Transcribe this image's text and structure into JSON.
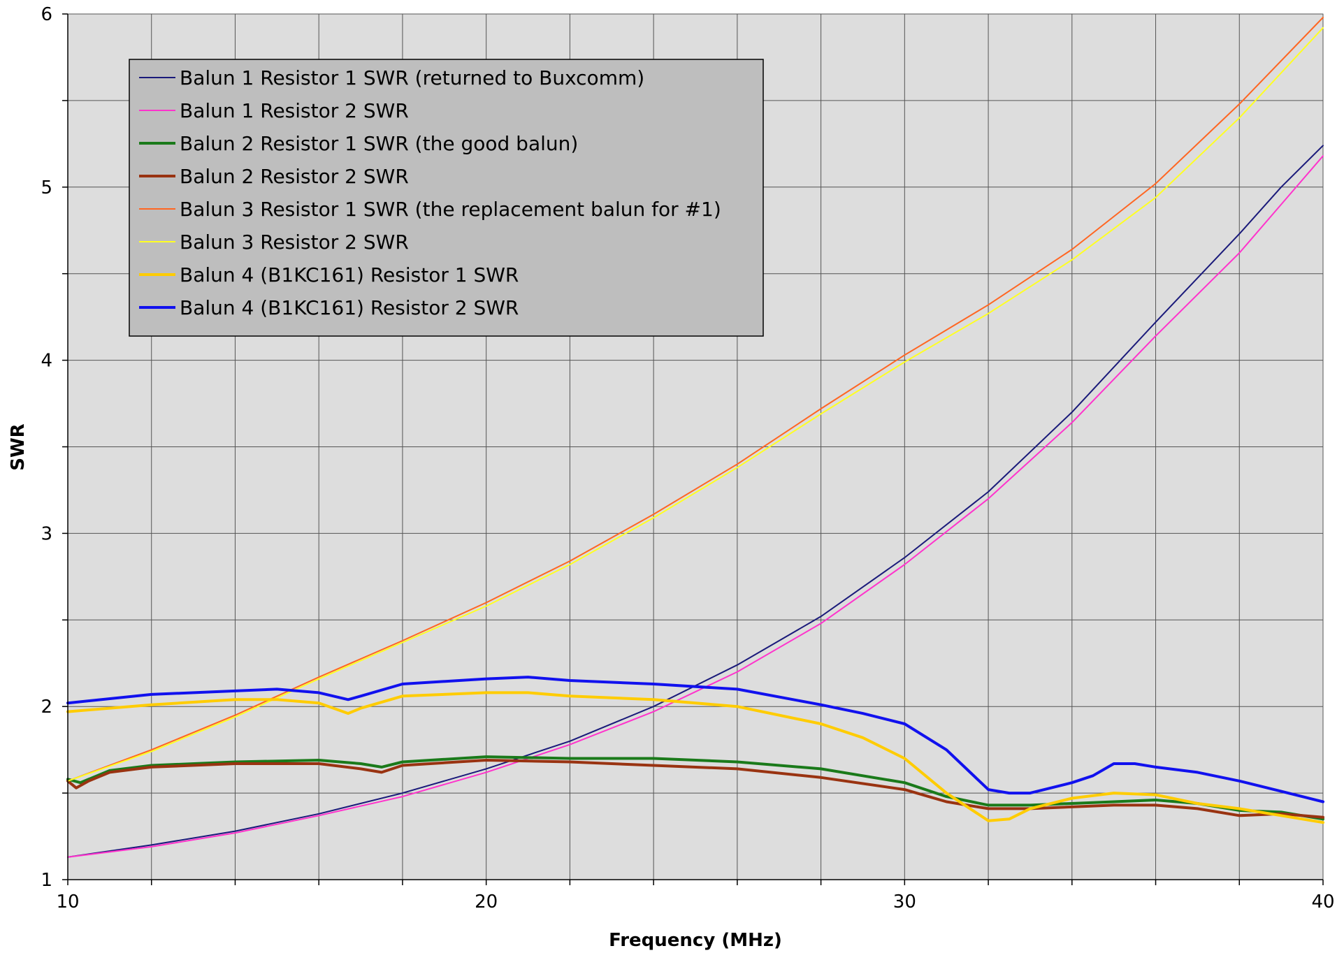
{
  "chart_data": {
    "type": "line",
    "xlabel": "Frequency (MHz)",
    "ylabel": "SWR",
    "xlim": [
      10,
      40
    ],
    "ylim": [
      1,
      6
    ],
    "x_ticks": [
      10,
      20,
      30,
      40
    ],
    "y_ticks": [
      1,
      2,
      3,
      4,
      5,
      6
    ],
    "x_minor_grid": [
      12,
      14,
      16,
      18,
      22,
      24,
      26,
      28,
      32,
      34,
      36,
      38
    ],
    "y_minor_grid": [
      1.5,
      2.5,
      3.5,
      4.5,
      5.5
    ],
    "grid": true,
    "plot_background": "#dddddd",
    "legend_placement": "top-left",
    "series": [
      {
        "name": "Balun 1 Resistor 1 SWR (returned to Buxcomm)",
        "color": "#1a1a7a",
        "width": 2,
        "x": [
          10,
          12,
          14,
          16,
          18,
          20,
          22,
          24,
          26,
          28,
          30,
          32,
          34,
          36,
          38,
          39,
          40
        ],
        "y": [
          1.13,
          1.2,
          1.28,
          1.38,
          1.5,
          1.64,
          1.8,
          2.0,
          2.24,
          2.52,
          2.86,
          3.24,
          3.7,
          4.22,
          4.73,
          5.0,
          5.24
        ]
      },
      {
        "name": "Balun 1 Resistor 2 SWR",
        "color": "#ff33cc",
        "width": 2,
        "x": [
          10,
          12,
          14,
          16,
          18,
          20,
          22,
          24,
          26,
          28,
          30,
          32,
          34,
          36,
          38,
          39,
          40
        ],
        "y": [
          1.13,
          1.19,
          1.27,
          1.37,
          1.48,
          1.62,
          1.78,
          1.97,
          2.2,
          2.48,
          2.82,
          3.2,
          3.64,
          4.14,
          4.62,
          4.9,
          5.18
        ]
      },
      {
        "name": "Balun 2 Resistor 1 SWR (the good balun)",
        "color": "#1a7a1a",
        "width": 4,
        "x": [
          10,
          10.3,
          11,
          12,
          14,
          16,
          17,
          17.5,
          18,
          20,
          22,
          24,
          26,
          28,
          30,
          31,
          32,
          33,
          35,
          36,
          37,
          38,
          39,
          40
        ],
        "y": [
          1.58,
          1.56,
          1.63,
          1.66,
          1.68,
          1.69,
          1.67,
          1.65,
          1.68,
          1.71,
          1.7,
          1.7,
          1.68,
          1.64,
          1.56,
          1.48,
          1.43,
          1.43,
          1.45,
          1.46,
          1.44,
          1.4,
          1.39,
          1.35
        ]
      },
      {
        "name": "Balun 2 Resistor 2 SWR",
        "color": "#993311",
        "width": 4,
        "x": [
          10,
          10.2,
          10.5,
          11,
          12,
          14,
          16,
          17,
          17.5,
          18,
          20,
          22,
          24,
          26,
          28,
          30,
          31,
          32,
          33,
          35,
          36,
          37,
          38,
          39,
          40
        ],
        "y": [
          1.57,
          1.53,
          1.57,
          1.62,
          1.65,
          1.67,
          1.67,
          1.64,
          1.62,
          1.66,
          1.69,
          1.68,
          1.66,
          1.64,
          1.59,
          1.52,
          1.45,
          1.41,
          1.41,
          1.43,
          1.43,
          1.41,
          1.37,
          1.38,
          1.36
        ]
      },
      {
        "name": "Balun 3 Resistor 1 SWR (the replacement balun for #1)",
        "color": "#ff6622",
        "width": 2,
        "x": [
          10,
          12,
          14,
          16,
          18,
          20,
          22,
          24,
          26,
          28,
          30,
          32,
          34,
          36,
          38,
          40
        ],
        "y": [
          1.57,
          1.75,
          1.95,
          2.17,
          2.38,
          2.6,
          2.84,
          3.11,
          3.4,
          3.72,
          4.03,
          4.32,
          4.64,
          5.02,
          5.48,
          5.98
        ]
      },
      {
        "name": "Balun 3 Resistor 2 SWR",
        "color": "#ffff22",
        "width": 2,
        "x": [
          10,
          12,
          14,
          16,
          18,
          20,
          22,
          24,
          26,
          28,
          30,
          32,
          34,
          36,
          38,
          40
        ],
        "y": [
          1.57,
          1.74,
          1.94,
          2.16,
          2.37,
          2.58,
          2.82,
          3.09,
          3.38,
          3.69,
          3.99,
          4.27,
          4.58,
          4.94,
          5.4,
          5.92
        ]
      },
      {
        "name": "Balun 4 (B1KC161) Resistor 1 SWR",
        "color": "#ffcc00",
        "width": 4,
        "x": [
          10,
          12,
          14,
          15,
          16,
          16.7,
          17,
          18,
          20,
          21,
          22,
          24,
          26,
          28,
          29,
          30,
          31,
          32,
          32.5,
          33,
          34,
          35,
          36,
          37,
          38,
          39,
          40
        ],
        "y": [
          1.97,
          2.01,
          2.04,
          2.04,
          2.02,
          1.96,
          1.99,
          2.06,
          2.08,
          2.08,
          2.06,
          2.04,
          2.0,
          1.9,
          1.82,
          1.7,
          1.5,
          1.34,
          1.35,
          1.41,
          1.47,
          1.5,
          1.49,
          1.44,
          1.41,
          1.37,
          1.33
        ]
      },
      {
        "name": "Balun 4 (B1KC161) Resistor 2 SWR",
        "color": "#1111ee",
        "width": 4,
        "x": [
          10,
          12,
          14,
          15,
          16,
          16.7,
          17,
          18,
          20,
          21,
          22,
          24,
          26,
          28,
          29,
          30,
          31,
          32,
          32.5,
          33,
          34,
          34.5,
          35,
          35.5,
          36,
          37,
          38,
          39,
          40
        ],
        "y": [
          2.02,
          2.07,
          2.09,
          2.1,
          2.08,
          2.04,
          2.06,
          2.13,
          2.16,
          2.17,
          2.15,
          2.13,
          2.1,
          2.01,
          1.96,
          1.9,
          1.75,
          1.52,
          1.5,
          1.5,
          1.56,
          1.6,
          1.67,
          1.67,
          1.65,
          1.62,
          1.57,
          1.51,
          1.45
        ]
      }
    ]
  }
}
